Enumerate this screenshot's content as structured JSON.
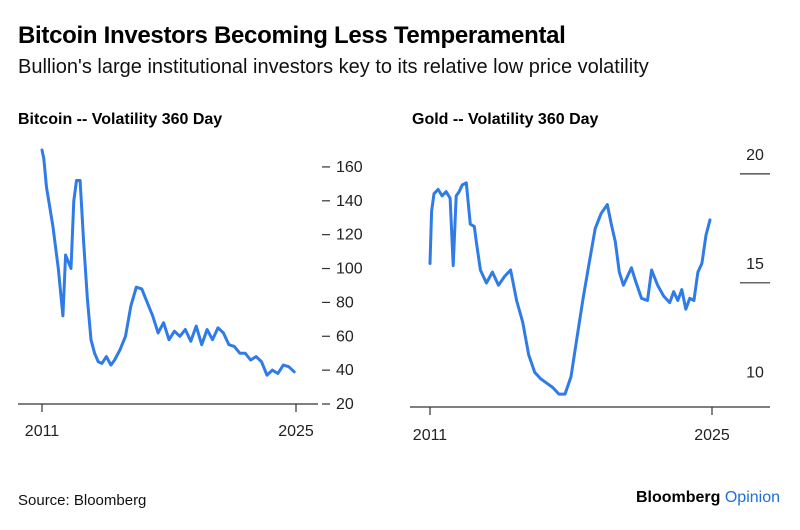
{
  "header": {
    "title": "Bitcoin Investors Becoming Less Temperamental",
    "subtitle": "Bullion's large institutional investors key to its relative low price volatility"
  },
  "footer": {
    "source": "Source: Bloomberg",
    "brand": "Bloomberg",
    "brand_accent": "Opinion"
  },
  "colors": {
    "line": "#2f7be8",
    "brand_accent": "#1f6fd6"
  },
  "chart_data": [
    {
      "type": "line",
      "title": "Bitcoin -- Volatility 360 Day",
      "xlabel": "",
      "ylabel": "",
      "x_ticks": [
        "2011",
        "2025"
      ],
      "xlim": [
        2011,
        2025
      ],
      "ylim": [
        20,
        170
      ],
      "y_ticks": [
        20,
        40,
        60,
        80,
        100,
        120,
        140,
        160
      ],
      "y_axis_side": "right",
      "grid": false,
      "series": [
        {
          "x": [
            2011.0,
            2011.1,
            2011.25,
            2011.4,
            2011.6,
            2011.9,
            2012.15,
            2012.3,
            2012.6,
            2012.75,
            2012.9,
            2013.1,
            2013.3,
            2013.5,
            2013.7,
            2013.9,
            2014.1,
            2014.3,
            2014.55,
            2014.8,
            2015.0,
            2015.3,
            2015.6,
            2015.9,
            2016.2,
            2016.5,
            2016.8,
            2017.1,
            2017.4,
            2017.7,
            2018.0,
            2018.3,
            2018.6,
            2018.9,
            2019.2,
            2019.5,
            2019.8,
            2020.1,
            2020.4,
            2020.7,
            2021.0,
            2021.3,
            2021.6,
            2021.9,
            2022.2,
            2022.5,
            2022.8,
            2023.1,
            2023.4,
            2023.7,
            2024.0,
            2024.3,
            2024.6,
            2024.9
          ],
          "values": [
            170,
            165,
            148,
            138,
            125,
            100,
            72,
            108,
            100,
            140,
            152,
            152,
            115,
            82,
            58,
            50,
            45,
            44,
            48,
            43,
            46,
            52,
            60,
            78,
            89,
            88,
            80,
            72,
            62,
            68,
            58,
            63,
            60,
            64,
            57,
            66,
            55,
            64,
            58,
            65,
            62,
            55,
            54,
            50,
            50,
            46,
            48,
            45,
            37,
            40,
            38,
            43,
            42,
            39
          ]
        }
      ]
    },
    {
      "type": "line",
      "title": "Gold -- Volatility 360 Day",
      "xlabel": "",
      "ylabel": "",
      "x_ticks": [
        "2011",
        "2025"
      ],
      "xlim": [
        2011,
        2025
      ],
      "ylim": [
        8.7,
        20.5
      ],
      "y_ticks": [
        10,
        15,
        20
      ],
      "y_axis_side": "right",
      "grid": false,
      "series": [
        {
          "x": [
            2011.0,
            2011.08,
            2011.2,
            2011.4,
            2011.6,
            2011.8,
            2012.0,
            2012.15,
            2012.3,
            2012.45,
            2012.6,
            2012.8,
            2013.0,
            2013.2,
            2013.3,
            2013.5,
            2013.8,
            2014.1,
            2014.4,
            2014.7,
            2015.0,
            2015.3,
            2015.6,
            2015.9,
            2016.2,
            2016.5,
            2016.8,
            2017.1,
            2017.4,
            2017.7,
            2018.0,
            2018.3,
            2018.6,
            2018.9,
            2019.2,
            2019.5,
            2019.8,
            2020.0,
            2020.2,
            2020.4,
            2020.6,
            2020.8,
            2021.0,
            2021.2,
            2021.5,
            2021.8,
            2022.0,
            2022.3,
            2022.6,
            2022.9,
            2023.1,
            2023.3,
            2023.5,
            2023.7,
            2023.9,
            2024.1,
            2024.3,
            2024.5,
            2024.7,
            2024.9
          ],
          "values": [
            15.2,
            17.6,
            18.4,
            18.6,
            18.3,
            18.5,
            18.2,
            15.1,
            18.3,
            18.5,
            18.8,
            18.9,
            17.0,
            16.9,
            16.2,
            14.9,
            14.3,
            14.8,
            14.2,
            14.6,
            14.9,
            13.5,
            12.5,
            11.0,
            10.2,
            9.9,
            9.7,
            9.5,
            9.2,
            9.2,
            10.0,
            11.8,
            13.6,
            15.2,
            16.8,
            17.5,
            17.9,
            17.0,
            16.2,
            14.8,
            14.2,
            14.6,
            15.0,
            14.4,
            13.6,
            13.5,
            14.9,
            14.2,
            13.7,
            13.4,
            13.9,
            13.5,
            14.0,
            13.1,
            13.6,
            13.5,
            14.8,
            15.2,
            16.5,
            17.2
          ]
        }
      ]
    }
  ]
}
